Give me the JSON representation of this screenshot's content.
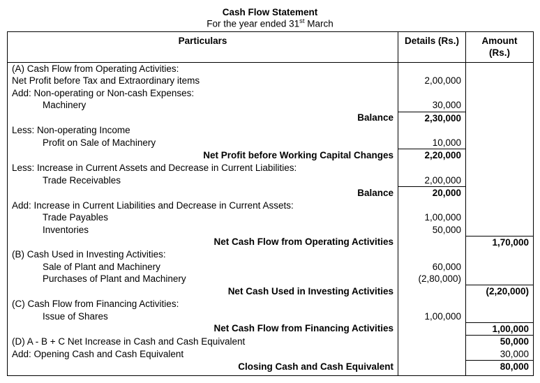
{
  "title": "Cash Flow Statement",
  "subtitle_prefix": "For the year ended 31",
  "subtitle_sup": "st",
  "subtitle_suffix": " March",
  "headers": {
    "particulars": "Particulars",
    "details": "Details (Rs.)",
    "amount": "Amount (Rs.)"
  },
  "rows": {
    "a_head": "(A) Cash Flow from Operating Activities:",
    "net_profit_before_tax": "Net Profit before Tax and Extraordinary items",
    "net_profit_before_tax_val": "2,00,000",
    "add_noncash": "Add: Non-operating or Non-cash Expenses:",
    "machinery": "Machinery",
    "machinery_val": "30,000",
    "balance1_lbl": "Balance",
    "balance1_val": "2,30,000",
    "less_nonop": "Less: Non-operating Income",
    "profit_sale_mach": "Profit on Sale of Machinery",
    "profit_sale_mach_val": "10,000",
    "np_before_wc_lbl": "Net Profit before Working Capital Changes",
    "np_before_wc_val": "2,20,000",
    "less_inc_ca": "Less: Increase in Current Assets and Decrease in Current Liabilities:",
    "trade_recv": "Trade Receivables",
    "trade_recv_val": "2,00,000",
    "balance2_lbl": "Balance",
    "balance2_val": "20,000",
    "add_inc_cl": "Add: Increase in Current Liabilities and Decrease in Current Assets:",
    "trade_pay": "Trade Payables",
    "trade_pay_val": "1,00,000",
    "inventories": "Inventories",
    "inventories_val": "50,000",
    "net_op_lbl": "Net Cash Flow from Operating Activities",
    "net_op_val": "1,70,000",
    "b_head": "(B) Cash Used in Investing Activities:",
    "sale_pm": "Sale of Plant and Machinery",
    "sale_pm_val": "60,000",
    "purch_pm": "Purchases of Plant and Machinery",
    "purch_pm_val": "(2,80,000)",
    "net_inv_lbl": "Net Cash Used in Investing Activities",
    "net_inv_val": "(2,20,000)",
    "c_head": "(C) Cash Flow from Financing Activities:",
    "issue_shares": "Issue of Shares",
    "issue_shares_val": "1,00,000",
    "net_fin_lbl": "Net Cash Flow from Financing Activities",
    "net_fin_val": "1,00,000",
    "d_net_inc": "(D) A - B + C Net Increase in Cash and Cash Equivalent",
    "d_net_inc_val": "50,000",
    "add_opening": "Add: Opening Cash and Cash Equivalent",
    "add_opening_val": "30,000",
    "closing_lbl": "Closing Cash and Cash Equivalent",
    "closing_val": "80,000"
  }
}
